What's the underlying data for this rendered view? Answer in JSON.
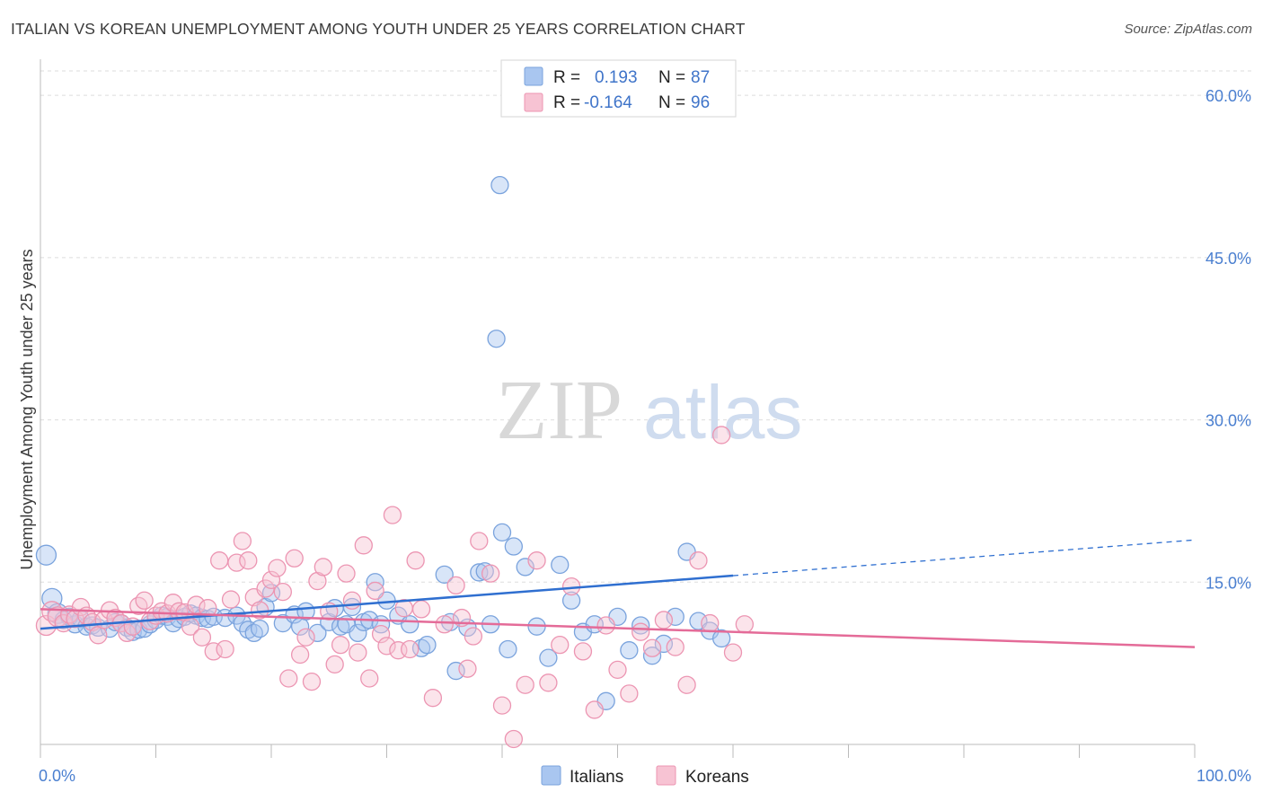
{
  "title": "ITALIAN VS KOREAN UNEMPLOYMENT AMONG YOUTH UNDER 25 YEARS CORRELATION CHART",
  "source": "Source: ZipAtlas.com",
  "watermark": {
    "zip": "ZIP",
    "atlas": "atlas"
  },
  "colors": {
    "italians_fill": "#a9c6f0",
    "italians_stroke": "#7aa3dd",
    "italians_line": "#2f6fd0",
    "koreans_fill": "#f7c3d3",
    "koreans_stroke": "#ec95b2",
    "koreans_line": "#e46b98",
    "grid": "#dddddd",
    "tick_label": "#4a7fd0"
  },
  "legend": {
    "r_label": "R =",
    "n_label": "N =",
    "italians_r": "0.193",
    "italians_n": "87",
    "koreans_r": "-0.164",
    "koreans_n": "96"
  },
  "chart_data": {
    "type": "scatter",
    "xlabel": "",
    "ylabel": "Unemployment Among Youth under 25 years",
    "xlim": [
      0,
      100
    ],
    "ylim": [
      0,
      63
    ],
    "x_tick_labels": [
      "0.0%",
      "100.0%"
    ],
    "y_ticks": [
      15,
      30,
      45,
      60
    ],
    "y_tick_labels": [
      "15.0%",
      "30.0%",
      "45.0%",
      "60.0%"
    ],
    "grid": true,
    "legend_position": "top-center",
    "series": [
      {
        "name": "Italians",
        "trend": {
          "x0": 0,
          "y0": 10.7,
          "x1": 60,
          "y1": 15.6,
          "dash_to_x": 100,
          "dash_to_y": 18.9
        },
        "points": [
          [
            0.5,
            17.5
          ],
          [
            1,
            13.5
          ],
          [
            1.5,
            12.1
          ],
          [
            2,
            11.5
          ],
          [
            2.5,
            11.8
          ],
          [
            3,
            11.1
          ],
          [
            3.5,
            11.6
          ],
          [
            4,
            10.9
          ],
          [
            4.5,
            11
          ],
          [
            5,
            10.8
          ],
          [
            6,
            10.7
          ],
          [
            6.5,
            11.3
          ],
          [
            7,
            11.2
          ],
          [
            7.5,
            10.8
          ],
          [
            8,
            10.4
          ],
          [
            8.5,
            10.6
          ],
          [
            9,
            10.7
          ],
          [
            9.5,
            11.1
          ],
          [
            10,
            11.5
          ],
          [
            10.5,
            11.9
          ],
          [
            11,
            11.8
          ],
          [
            11.5,
            11.2
          ],
          [
            12,
            11.6
          ],
          [
            12.5,
            11.8
          ],
          [
            13,
            12.1
          ],
          [
            13.5,
            11.9
          ],
          [
            14,
            11.7
          ],
          [
            14.5,
            11.6
          ],
          [
            15,
            11.8
          ],
          [
            16,
            11.7
          ],
          [
            17,
            11.9
          ],
          [
            17.5,
            11.2
          ],
          [
            18,
            10.6
          ],
          [
            18.5,
            10.3
          ],
          [
            19,
            10.7
          ],
          [
            19.5,
            12.7
          ],
          [
            20,
            14
          ],
          [
            21,
            11.2
          ],
          [
            22,
            12
          ],
          [
            22.5,
            10.9
          ],
          [
            23,
            12.3
          ],
          [
            24,
            10.3
          ],
          [
            25,
            11.3
          ],
          [
            25.5,
            12.6
          ],
          [
            26,
            10.9
          ],
          [
            26.5,
            11.1
          ],
          [
            27,
            12.7
          ],
          [
            27.5,
            10.3
          ],
          [
            28,
            11.3
          ],
          [
            28.5,
            11.5
          ],
          [
            29,
            15
          ],
          [
            29.5,
            11.1
          ],
          [
            30,
            13.3
          ],
          [
            31,
            11.9
          ],
          [
            32,
            11.1
          ],
          [
            33,
            8.9
          ],
          [
            33.5,
            9.2
          ],
          [
            35,
            15.7
          ],
          [
            35.5,
            11.3
          ],
          [
            36,
            6.8
          ],
          [
            37,
            10.8
          ],
          [
            38,
            15.9
          ],
          [
            38.5,
            16
          ],
          [
            39,
            11.1
          ],
          [
            40,
            19.6
          ],
          [
            40.5,
            8.8
          ],
          [
            41,
            18.3
          ],
          [
            42,
            16.4
          ],
          [
            43,
            10.9
          ],
          [
            44,
            8
          ],
          [
            45,
            16.6
          ],
          [
            46,
            13.3
          ],
          [
            47,
            10.4
          ],
          [
            48,
            11.1
          ],
          [
            49,
            4
          ],
          [
            50,
            11.8
          ],
          [
            51,
            8.7
          ],
          [
            52,
            11
          ],
          [
            53,
            8.2
          ],
          [
            54,
            9.3
          ],
          [
            55,
            11.8
          ],
          [
            56,
            17.8
          ],
          [
            57,
            11.4
          ],
          [
            58,
            10.5
          ],
          [
            59,
            9.8
          ],
          [
            39.5,
            37.5
          ],
          [
            39.8,
            51.7
          ]
        ]
      },
      {
        "name": "Koreans",
        "trend": {
          "x0": 0,
          "y0": 12.5,
          "x1": 100,
          "y1": 9.0
        },
        "points": [
          [
            0.5,
            11
          ],
          [
            1,
            12.3
          ],
          [
            1.5,
            11.8
          ],
          [
            2,
            11.2
          ],
          [
            2.5,
            12
          ],
          [
            3,
            11.6
          ],
          [
            3.5,
            12.7
          ],
          [
            4,
            11.9
          ],
          [
            4.5,
            11.3
          ],
          [
            5,
            10.1
          ],
          [
            5.5,
            11.5
          ],
          [
            6,
            12.4
          ],
          [
            6.5,
            11.7
          ],
          [
            7,
            11.2
          ],
          [
            7.5,
            10.3
          ],
          [
            8,
            10.9
          ],
          [
            8.5,
            12.8
          ],
          [
            9,
            13.3
          ],
          [
            9.5,
            11.4
          ],
          [
            10,
            11.9
          ],
          [
            10.5,
            12.3
          ],
          [
            11,
            12.1
          ],
          [
            11.5,
            13.1
          ],
          [
            12,
            12.3
          ],
          [
            12.5,
            12.2
          ],
          [
            13,
            10.9
          ],
          [
            13.5,
            12.9
          ],
          [
            14,
            9.9
          ],
          [
            14.5,
            12.6
          ],
          [
            15,
            8.6
          ],
          [
            15.5,
            17
          ],
          [
            16,
            8.8
          ],
          [
            16.5,
            13.4
          ],
          [
            17,
            16.8
          ],
          [
            17.5,
            18.8
          ],
          [
            18,
            17
          ],
          [
            18.5,
            13.6
          ],
          [
            19,
            12.4
          ],
          [
            19.5,
            14.4
          ],
          [
            20,
            15.2
          ],
          [
            20.5,
            16.3
          ],
          [
            21,
            14.1
          ],
          [
            21.5,
            6.1
          ],
          [
            22,
            17.2
          ],
          [
            22.5,
            8.3
          ],
          [
            23,
            9.9
          ],
          [
            23.5,
            5.8
          ],
          [
            24,
            15.1
          ],
          [
            24.5,
            16.4
          ],
          [
            25,
            12.3
          ],
          [
            25.5,
            7.4
          ],
          [
            26,
            9.2
          ],
          [
            26.5,
            15.8
          ],
          [
            27,
            13.3
          ],
          [
            27.5,
            8.5
          ],
          [
            28,
            18.4
          ],
          [
            28.5,
            6.1
          ],
          [
            29,
            14.2
          ],
          [
            29.5,
            10.2
          ],
          [
            30,
            9.1
          ],
          [
            30.5,
            21.2
          ],
          [
            31,
            8.7
          ],
          [
            31.5,
            12.6
          ],
          [
            32,
            8.8
          ],
          [
            32.5,
            17
          ],
          [
            33,
            12.5
          ],
          [
            34,
            4.3
          ],
          [
            35,
            11.1
          ],
          [
            36,
            14.7
          ],
          [
            36.5,
            11.7
          ],
          [
            37,
            7
          ],
          [
            37.5,
            10
          ],
          [
            38,
            18.8
          ],
          [
            39,
            15.8
          ],
          [
            40,
            3.6
          ],
          [
            41,
            0.5
          ],
          [
            42,
            5.5
          ],
          [
            43,
            17
          ],
          [
            44,
            5.7
          ],
          [
            45,
            9.2
          ],
          [
            46,
            14.6
          ],
          [
            47,
            8.6
          ],
          [
            48,
            3.2
          ],
          [
            49,
            11
          ],
          [
            50,
            6.9
          ],
          [
            51,
            4.7
          ],
          [
            52,
            10.4
          ],
          [
            53,
            8.9
          ],
          [
            54,
            11.5
          ],
          [
            55,
            9
          ],
          [
            56,
            5.5
          ],
          [
            57,
            17
          ],
          [
            58,
            11.2
          ],
          [
            59,
            28.6
          ],
          [
            60,
            8.5
          ],
          [
            61,
            11.1
          ]
        ]
      }
    ]
  },
  "bottom_legend": {
    "italians": "Italians",
    "koreans": "Koreans"
  }
}
